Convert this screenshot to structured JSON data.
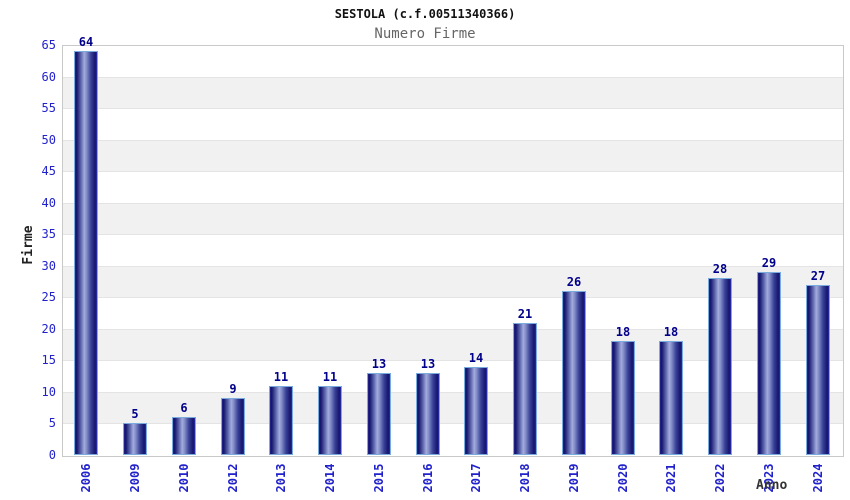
{
  "chart_data": {
    "type": "bar",
    "title": "SESTOLA (c.f.00511340366)",
    "subtitle": "Numero Firme",
    "xlabel": "Anno",
    "ylabel": "Firme",
    "categories": [
      "2006",
      "2009",
      "2010",
      "2012",
      "2013",
      "2014",
      "2015",
      "2016",
      "2017",
      "2018",
      "2019",
      "2020",
      "2021",
      "2022",
      "2023",
      "2024"
    ],
    "values": [
      64,
      5,
      6,
      9,
      11,
      11,
      13,
      13,
      14,
      21,
      26,
      18,
      18,
      28,
      29,
      27
    ],
    "ylim": [
      0,
      65
    ],
    "ytick_step": 5,
    "yticks": [
      0,
      5,
      10,
      15,
      20,
      25,
      30,
      35,
      40,
      45,
      50,
      55,
      60,
      65
    ],
    "grid": "horizontal-bands",
    "legend": "none",
    "colors": {
      "tick_label_blue": "#2222cc",
      "value_label_navy": "#00008b",
      "bar_border_lightblue": "#79abdf",
      "bar_dark_navy": "#15156b",
      "bar_light_center": "#a3acdc",
      "band_gray": "#f1f1f1",
      "gridline": "#e4e4e4",
      "plot_border": "#c9c9c9",
      "subtitle_gray": "#666666",
      "axis_title_dark": "#333333",
      "background": "#ffffff"
    }
  }
}
